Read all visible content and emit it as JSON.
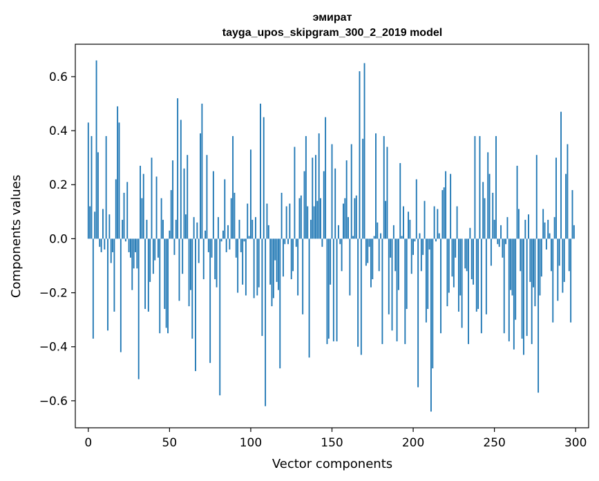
{
  "chart_data": {
    "type": "bar",
    "title": "эмират",
    "subtitle": "tayga_upos_skipgram_300_2_2019 model",
    "xlabel": "Vector components",
    "ylabel": "Components values",
    "xlim": [
      -8,
      308
    ],
    "ylim": [
      -0.7,
      0.72
    ],
    "xticks": [
      0,
      50,
      100,
      150,
      200,
      250,
      300
    ],
    "xtick_labels": [
      "0",
      "50",
      "100",
      "150",
      "200",
      "250",
      "300"
    ],
    "yticks": [
      -0.6,
      -0.4,
      -0.2,
      0.0,
      0.2,
      0.4,
      0.6
    ],
    "ytick_labels": [
      "−0.6",
      "−0.4",
      "−0.2",
      "0.0",
      "0.2",
      "0.4",
      "0.6"
    ],
    "bar_color": "#1f77b4",
    "values": [
      0.43,
      0.12,
      0.38,
      -0.37,
      0.1,
      0.66,
      0.32,
      -0.03,
      -0.05,
      0.11,
      -0.04,
      0.38,
      -0.34,
      0.09,
      -0.09,
      -0.05,
      -0.27,
      0.22,
      0.49,
      0.43,
      -0.42,
      0.07,
      0.17,
      -0.01,
      0.21,
      -0.05,
      -0.07,
      -0.19,
      -0.11,
      -0.05,
      -0.11,
      -0.52,
      0.27,
      0.15,
      0.24,
      -0.26,
      0.07,
      -0.27,
      -0.16,
      0.3,
      -0.13,
      -0.08,
      0.23,
      -0.07,
      -0.35,
      0.15,
      0.07,
      -0.26,
      -0.33,
      -0.35,
      0.03,
      0.18,
      0.29,
      -0.06,
      0.07,
      0.52,
      -0.23,
      0.44,
      -0.13,
      0.26,
      0.09,
      0.31,
      -0.25,
      -0.19,
      -0.37,
      0.08,
      -0.49,
      0.06,
      -0.09,
      0.39,
      0.5,
      -0.15,
      0.03,
      0.31,
      -0.05,
      -0.46,
      -0.07,
      0.25,
      -0.15,
      -0.18,
      0.08,
      -0.58,
      -0.01,
      0.03,
      0.22,
      -0.05,
      0.05,
      -0.04,
      0.15,
      0.38,
      0.17,
      -0.07,
      -0.2,
      0.07,
      -0.05,
      -0.17,
      -0.01,
      -0.21,
      0.13,
      0.01,
      0.33,
      0.07,
      -0.22,
      0.08,
      -0.21,
      -0.18,
      0.5,
      -0.36,
      0.45,
      -0.62,
      0.13,
      0.05,
      -0.17,
      -0.25,
      -0.22,
      -0.08,
      -0.16,
      -0.19,
      -0.48,
      0.17,
      -0.14,
      -0.02,
      0.12,
      -0.02,
      0.13,
      -0.15,
      -0.12,
      0.34,
      -0.03,
      -0.21,
      0.15,
      0.16,
      -0.28,
      0.25,
      0.38,
      0.12,
      -0.44,
      0.07,
      0.3,
      0.12,
      0.31,
      0.14,
      0.39,
      0.15,
      -0.03,
      0.25,
      0.45,
      -0.39,
      -0.37,
      -0.17,
      0.35,
      -0.38,
      0.26,
      -0.38,
      0.05,
      -0.02,
      -0.12,
      0.13,
      0.15,
      0.29,
      0.08,
      -0.21,
      0.35,
      0.01,
      0.15,
      0.16,
      -0.4,
      0.62,
      -0.43,
      0.37,
      0.65,
      -0.1,
      -0.09,
      -0.03,
      -0.18,
      -0.15,
      0.01,
      0.39,
      0.06,
      -0.12,
      0.02,
      -0.39,
      0.38,
      0.14,
      0.34,
      -0.28,
      -0.07,
      -0.34,
      0.05,
      -0.12,
      -0.38,
      -0.19,
      0.28,
      0.01,
      0.12,
      -0.39,
      -0.26,
      0.1,
      0.07,
      -0.13,
      -0.06,
      -0.01,
      0.22,
      -0.55,
      0.02,
      -0.12,
      -0.06,
      0.14,
      -0.31,
      -0.26,
      -0.04,
      -0.64,
      -0.48,
      0.12,
      -0.01,
      0.11,
      0.02,
      -0.35,
      0.18,
      0.19,
      0.25,
      -0.25,
      -0.2,
      0.24,
      -0.14,
      -0.18,
      -0.07,
      0.12,
      -0.27,
      -0.21,
      -0.33,
      0.0,
      -0.11,
      -0.12,
      -0.39,
      0.04,
      -0.15,
      -0.17,
      0.38,
      -0.27,
      -0.26,
      0.38,
      -0.35,
      0.21,
      0.15,
      -0.28,
      0.32,
      0.24,
      -0.1,
      0.17,
      0.07,
      0.38,
      -0.02,
      -0.03,
      0.05,
      -0.07,
      -0.35,
      -0.02,
      0.08,
      -0.38,
      -0.19,
      -0.21,
      -0.41,
      -0.3,
      0.27,
      0.11,
      -0.12,
      -0.37,
      -0.43,
      0.07,
      -0.36,
      0.09,
      -0.16,
      -0.39,
      -0.18,
      -0.25,
      0.31,
      -0.57,
      -0.21,
      -0.14,
      0.11,
      0.06,
      -0.04,
      0.07,
      0.02,
      -0.12,
      -0.31,
      0.08,
      0.3,
      -0.23,
      -0.1,
      0.47,
      -0.2,
      -0.16,
      0.24,
      0.35,
      -0.12,
      -0.31,
      0.18,
      0.05
    ]
  }
}
